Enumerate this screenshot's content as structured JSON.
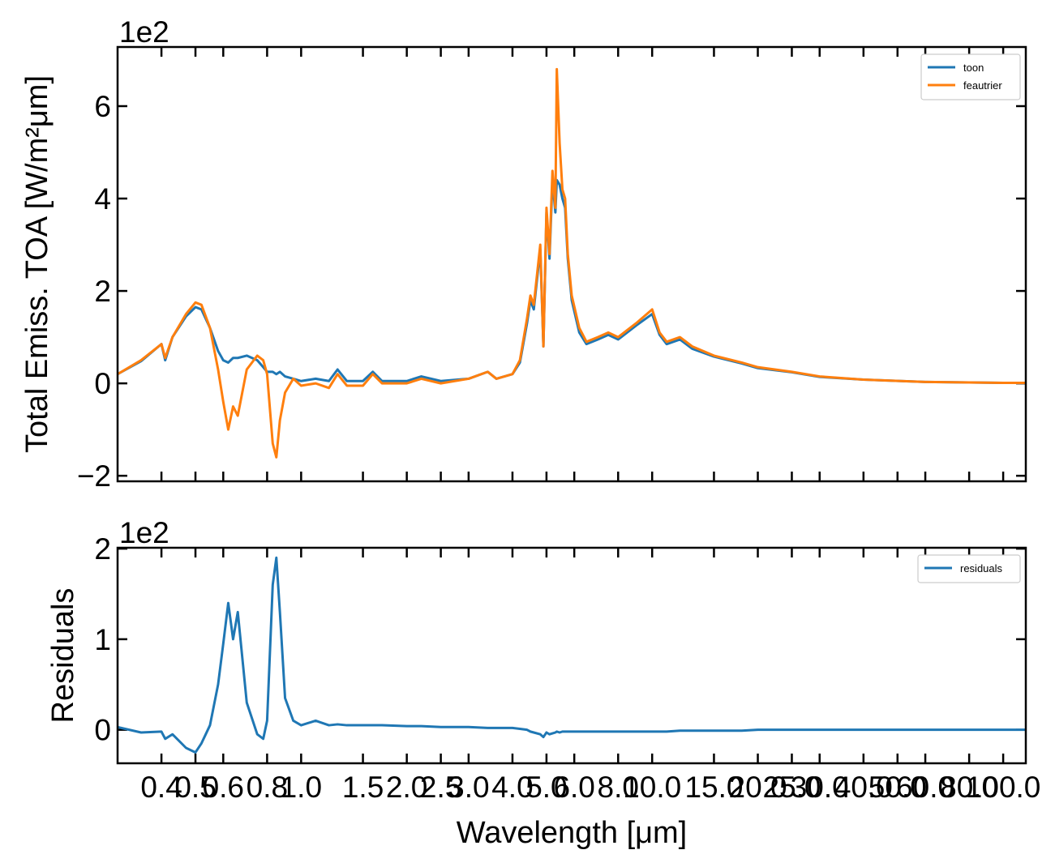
{
  "chart_data": [
    {
      "type": "line",
      "offset_label": "1e2",
      "ylabel": "Total Emiss. TOA [W/m²μm]",
      "xscale": "log",
      "legend": "upper right",
      "show_xticklabels": false,
      "xlim": [
        0.3,
        116
      ],
      "ylim": [
        -2.12,
        7.28
      ],
      "xticks": [
        0.4,
        0.5,
        0.6,
        0.8,
        {
          "value": 1,
          "label": "1.0"
        },
        1.5,
        {
          "value": 2,
          "label": "2.0"
        },
        2.5,
        {
          "value": 3,
          "label": "3.0"
        },
        {
          "value": 4,
          "label": "4.0"
        },
        {
          "value": 5,
          "label": "5.0"
        },
        {
          "value": 6,
          "label": "6.0"
        },
        {
          "value": 8,
          "label": "8.0"
        },
        {
          "value": 10,
          "label": "10.0"
        },
        {
          "value": 15,
          "label": "15.0"
        },
        {
          "value": 20,
          "label": "20.0"
        },
        {
          "value": 25,
          "label": "25.0"
        },
        {
          "value": 30,
          "label": "30.0"
        },
        {
          "value": 40,
          "label": "40.0"
        },
        {
          "value": 50,
          "label": "50.0"
        },
        {
          "value": 60,
          "label": "60.0"
        },
        {
          "value": 80,
          "label": "80.0"
        },
        {
          "value": 100,
          "label": "100.0"
        }
      ],
      "yticks": [
        {
          "value": -2,
          "label": "−2"
        },
        0,
        2,
        4,
        6
      ],
      "x": [
        0.3,
        0.35,
        0.4,
        0.41,
        0.43,
        0.47,
        0.5,
        0.52,
        0.55,
        0.58,
        0.6,
        0.62,
        0.64,
        0.66,
        0.7,
        0.75,
        0.78,
        0.8,
        0.83,
        0.85,
        0.87,
        0.9,
        0.95,
        1.0,
        1.1,
        1.2,
        1.27,
        1.35,
        1.5,
        1.6,
        1.7,
        2.0,
        2.2,
        2.5,
        3.0,
        3.4,
        3.6,
        4.0,
        4.2,
        4.4,
        4.5,
        4.6,
        4.8,
        4.9,
        5.0,
        5.1,
        5.2,
        5.3,
        5.35,
        5.45,
        5.55,
        5.65,
        5.75,
        5.9,
        6.2,
        6.5,
        7.0,
        7.5,
        8.0,
        9.0,
        10.0,
        10.5,
        11.0,
        12.0,
        13.0,
        15.0,
        18.0,
        20.0,
        25.0,
        30.0,
        40.0,
        60.0,
        100.0,
        116.0
      ],
      "series": [
        {
          "name": "toon",
          "color": "#1f77b4",
          "values": [
            0.2,
            0.48,
            0.85,
            0.5,
            1.0,
            1.45,
            1.65,
            1.6,
            1.2,
            0.7,
            0.5,
            0.45,
            0.55,
            0.55,
            0.6,
            0.5,
            0.35,
            0.25,
            0.25,
            0.2,
            0.25,
            0.15,
            0.1,
            0.05,
            0.1,
            0.05,
            0.3,
            0.05,
            0.05,
            0.25,
            0.05,
            0.05,
            0.15,
            0.05,
            0.1,
            0.25,
            0.1,
            0.2,
            0.45,
            1.3,
            1.8,
            1.6,
            2.9,
            0.8,
            3.7,
            2.7,
            4.4,
            3.7,
            4.4,
            4.3,
            4.0,
            3.8,
            2.7,
            1.8,
            1.1,
            0.85,
            0.95,
            1.05,
            0.95,
            1.25,
            1.5,
            1.05,
            0.85,
            0.95,
            0.75,
            0.58,
            0.43,
            0.33,
            0.24,
            0.14,
            0.08,
            0.03,
            0.01,
            0.01
          ]
        },
        {
          "name": "feautrier",
          "color": "#ff7f0e",
          "values": [
            0.2,
            0.5,
            0.85,
            0.55,
            1.0,
            1.5,
            1.75,
            1.7,
            1.2,
            0.3,
            -0.4,
            -1.0,
            -0.5,
            -0.7,
            0.3,
            0.6,
            0.5,
            0.2,
            -1.3,
            -1.6,
            -0.8,
            -0.2,
            0.1,
            -0.05,
            0.0,
            -0.1,
            0.2,
            -0.05,
            -0.05,
            0.2,
            0.0,
            0.0,
            0.1,
            0.0,
            0.1,
            0.25,
            0.1,
            0.2,
            0.5,
            1.4,
            1.9,
            1.7,
            3.0,
            0.8,
            3.8,
            2.8,
            4.6,
            3.8,
            6.8,
            5.2,
            4.2,
            4.0,
            2.8,
            1.9,
            1.2,
            0.9,
            1.0,
            1.1,
            1.0,
            1.3,
            1.6,
            1.1,
            0.9,
            1.0,
            0.8,
            0.6,
            0.45,
            0.35,
            0.25,
            0.15,
            0.08,
            0.03,
            0.01,
            0.01
          ]
        }
      ]
    },
    {
      "type": "line",
      "offset_label": "1e2",
      "ylabel": "Residuals",
      "xlabel": "Wavelength [μm]",
      "xscale": "log",
      "legend": "upper right",
      "show_xticklabels": true,
      "xlim": [
        0.3,
        116
      ],
      "ylim": [
        -0.37,
        2.01
      ],
      "xticks": [
        0.4,
        0.5,
        0.6,
        0.8,
        {
          "value": 1,
          "label": "1.0"
        },
        1.5,
        {
          "value": 2,
          "label": "2.0"
        },
        2.5,
        {
          "value": 3,
          "label": "3.0"
        },
        {
          "value": 4,
          "label": "4.0"
        },
        {
          "value": 5,
          "label": "5.0"
        },
        {
          "value": 6,
          "label": "6.0"
        },
        {
          "value": 8,
          "label": "8.0"
        },
        {
          "value": 10,
          "label": "10.0"
        },
        {
          "value": 15,
          "label": "15.0"
        },
        {
          "value": 20,
          "label": "20.0"
        },
        {
          "value": 25,
          "label": "25.0"
        },
        {
          "value": 30,
          "label": "30.0"
        },
        {
          "value": 40,
          "label": "40.0"
        },
        {
          "value": 50,
          "label": "50.0"
        },
        {
          "value": 60,
          "label": "60.0"
        },
        {
          "value": 80,
          "label": "80.0"
        },
        {
          "value": 100,
          "label": "100.0"
        }
      ],
      "yticks": [
        0,
        1,
        2
      ],
      "x": [
        0.3,
        0.35,
        0.4,
        0.41,
        0.43,
        0.47,
        0.5,
        0.52,
        0.55,
        0.58,
        0.6,
        0.62,
        0.64,
        0.66,
        0.7,
        0.75,
        0.78,
        0.8,
        0.83,
        0.85,
        0.87,
        0.9,
        0.95,
        1.0,
        1.1,
        1.2,
        1.27,
        1.35,
        1.5,
        1.6,
        1.7,
        2.0,
        2.2,
        2.5,
        3.0,
        3.4,
        3.6,
        4.0,
        4.2,
        4.4,
        4.5,
        4.6,
        4.8,
        4.9,
        5.0,
        5.1,
        5.2,
        5.3,
        5.35,
        5.45,
        5.55,
        5.65,
        5.75,
        5.9,
        6.2,
        6.5,
        7.0,
        7.5,
        8.0,
        9.0,
        10.0,
        10.5,
        11.0,
        12.0,
        13.0,
        15.0,
        18.0,
        20.0,
        25.0,
        30.0,
        40.0,
        60.0,
        100.0,
        116.0
      ],
      "series": [
        {
          "name": "residuals",
          "color": "#1f77b4",
          "values": [
            0.03,
            -0.03,
            -0.02,
            -0.1,
            -0.05,
            -0.2,
            -0.25,
            -0.15,
            0.05,
            0.5,
            0.95,
            1.4,
            1.0,
            1.3,
            0.3,
            -0.05,
            -0.1,
            0.1,
            1.6,
            1.9,
            1.3,
            0.35,
            0.1,
            0.05,
            0.1,
            0.05,
            0.06,
            0.05,
            0.05,
            0.05,
            0.05,
            0.04,
            0.04,
            0.03,
            0.03,
            0.02,
            0.02,
            0.02,
            0.01,
            0.0,
            -0.02,
            -0.03,
            -0.05,
            -0.08,
            -0.03,
            -0.05,
            -0.04,
            -0.03,
            -0.02,
            -0.03,
            -0.02,
            -0.02,
            -0.02,
            -0.02,
            -0.02,
            -0.02,
            -0.02,
            -0.02,
            -0.02,
            -0.02,
            -0.02,
            -0.02,
            -0.02,
            -0.01,
            -0.01,
            -0.01,
            -0.01,
            0.0,
            0.0,
            0.0,
            0.0,
            0.0,
            0.0,
            0.0
          ]
        }
      ]
    }
  ]
}
